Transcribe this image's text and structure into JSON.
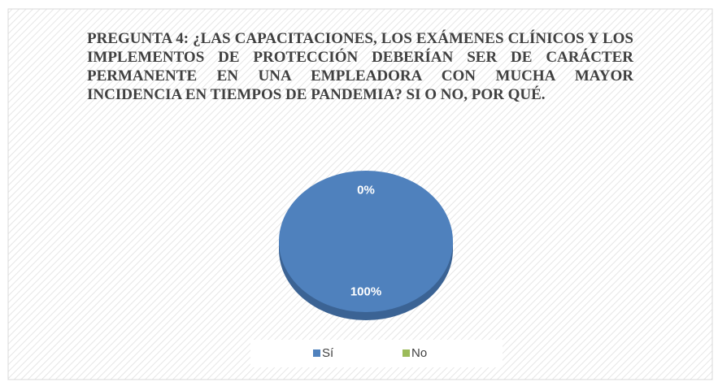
{
  "chart_data": {
    "type": "pie",
    "title": "PREGUNTA 4: ¿LAS CAPACITACIONES, LOS EXÁMENES CLÍNICOS Y LOS IMPLEMENTOS DE PROTECCIÓN DEBERÍAN SER DE CARÁCTER PERMANENTE EN UNA EMPLEADORA CON MUCHA MAYOR INCIDENCIA EN TIEMPOS DE PANDEMIA? SI O NO, POR QUÉ.",
    "categories": [
      "Sí",
      "No"
    ],
    "values": [
      100,
      0
    ],
    "value_labels": [
      "100%",
      "0%"
    ],
    "colors": [
      "#4f81bd",
      "#9bbb59"
    ],
    "legend": "bottom"
  }
}
